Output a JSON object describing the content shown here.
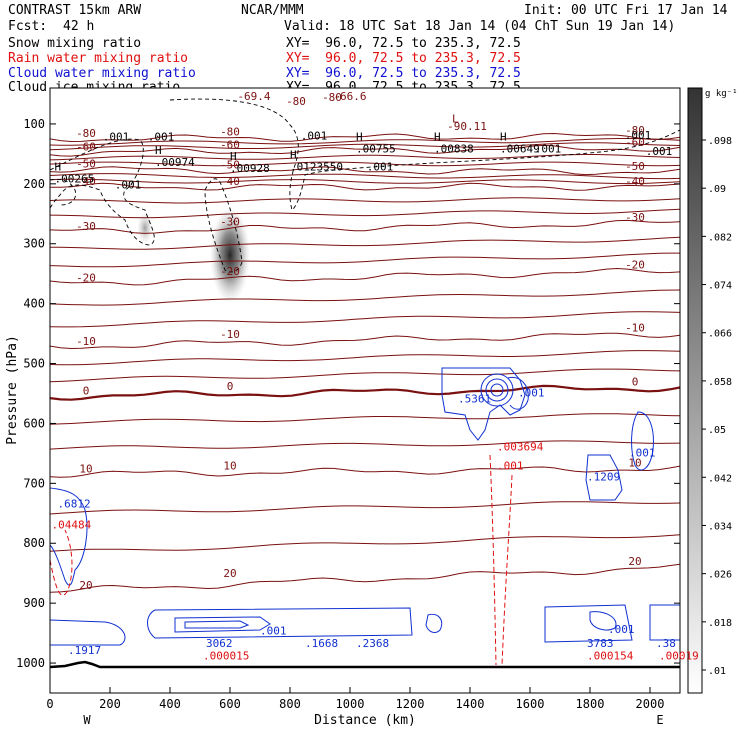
{
  "header": {
    "model": "CONTRAST 15km ARW",
    "center": "NCAR/MMM",
    "init": "Init: 00 UTC Fri 17 Jan 14",
    "fcst_label": "Fcst:",
    "fcst_value": "42 h",
    "valid": "Valid: 18 UTC Sat 18 Jan 14 (04 ChT Sun 19 Jan 14)",
    "fields": [
      {
        "name": "Snow mixing ratio",
        "xy": "XY=  96.0, 72.5 to 235.3, 72.5",
        "color": "#000000"
      },
      {
        "name": "Rain water mixing ratio",
        "xy": "XY=  96.0, 72.5 to 235.3, 72.5",
        "color": "#e01010"
      },
      {
        "name": "Cloud water mixing ratio",
        "xy": "XY=  96.0, 72.5 to 235.3, 72.5",
        "color": "#1010d0"
      },
      {
        "name": "Cloud ice mixing ratio",
        "xy": "XY=  96.0, 72.5 to 235.3, 72.5",
        "color": "#000000"
      }
    ]
  },
  "chart_data": {
    "type": "contour",
    "xlabel": "Distance (km)",
    "ylabel": "Pressure (hPa)",
    "xlim": [
      0,
      2100
    ],
    "ylim": [
      1050,
      40
    ],
    "x_ticks": [
      0,
      200,
      400,
      600,
      800,
      1000,
      1200,
      1400,
      1600,
      1800,
      2000
    ],
    "y_ticks": [
      100,
      200,
      300,
      400,
      500,
      600,
      700,
      800,
      900,
      1000
    ],
    "x_end_labels": {
      "left": "W",
      "right": "E"
    },
    "colorbar": {
      "unit": "g kg⁻¹",
      "ticks": [
        ".01",
        ".018",
        ".026",
        ".034",
        ".042",
        ".05",
        ".058",
        ".066",
        ".074",
        ".082",
        ".09",
        ".098"
      ]
    },
    "temperature_contours": [
      {
        "label": "-80",
        "pressure_left": 125,
        "pressure_right": 120
      },
      {
        "label": "-60",
        "pressure_left": 148,
        "pressure_right": 140
      },
      {
        "label": "-50",
        "pressure_left": 176,
        "pressure_right": 180
      },
      {
        "label": "-40",
        "pressure_left": 205,
        "pressure_right": 205
      },
      {
        "label": "-30",
        "pressure_left": 280,
        "pressure_right": 265
      },
      {
        "label": "-20",
        "pressure_left": 366,
        "pressure_right": 345
      },
      {
        "label": "-10",
        "pressure_left": 472,
        "pressure_right": 450
      },
      {
        "label": "0",
        "pressure_left": 555,
        "pressure_right": 540
      },
      {
        "label": "10",
        "pressure_left": 685,
        "pressure_right": 675
      },
      {
        "label": "20",
        "pressure_left": 880,
        "pressure_right": 840
      }
    ],
    "upper_labels": [
      "-69.4",
      "-80",
      "-66.6",
      "-80",
      "-90.11"
    ],
    "maxima": {
      "snow": [
        {
          "label": ".00265",
          "x": 15,
          "p": 198
        },
        {
          "label": ".00974",
          "x": 350,
          "p": 170
        },
        {
          "label": ".00928",
          "x": 600,
          "p": 180
        },
        {
          "label": ".0123550",
          "x": 800,
          "p": 178
        },
        {
          "label": ".00755",
          "x": 1020,
          "p": 148
        },
        {
          "label": ".00838",
          "x": 1280,
          "p": 148
        },
        {
          "label": ".00649",
          "x": 1500,
          "p": 148
        }
      ],
      "ice_labels": [
        ".001",
        ".001",
        ".001",
        ".001",
        ".001",
        ".001",
        ".001",
        ".001"
      ],
      "cloud_water": [
        {
          "label": ".5361",
          "x": 1360,
          "p": 565
        },
        {
          "label": ".001",
          "x": 1560,
          "p": 555
        },
        {
          "label": ".001",
          "x": 1930,
          "p": 655
        },
        {
          "label": ".1209",
          "x": 1790,
          "p": 695
        },
        {
          "label": ".6812",
          "x": 25,
          "p": 740
        },
        {
          "label": ".1917",
          "x": 60,
          "p": 985
        },
        {
          "label": "3062",
          "x": 520,
          "p": 973
        },
        {
          "label": ".1668",
          "x": 850,
          "p": 973
        },
        {
          "label": ".2368",
          "x": 1020,
          "p": 973
        },
        {
          "label": ".001",
          "x": 700,
          "p": 952
        },
        {
          "label": "3783",
          "x": 1790,
          "p": 973
        },
        {
          "label": ".001",
          "x": 1860,
          "p": 950
        },
        {
          "label": ".38",
          "x": 2020,
          "p": 973
        }
      ],
      "rain": [
        {
          "label": ".003694",
          "x": 1490,
          "p": 645
        },
        {
          "label": ".001",
          "x": 1490,
          "p": 677
        },
        {
          "label": ".04484",
          "x": 5,
          "p": 775
        },
        {
          "label": ".000015",
          "x": 510,
          "p": 994
        },
        {
          "label": ".000154",
          "x": 1790,
          "p": 994
        },
        {
          "label": ".00019",
          "x": 2030,
          "p": 994
        }
      ],
      "H": "H",
      "L": "L"
    }
  }
}
